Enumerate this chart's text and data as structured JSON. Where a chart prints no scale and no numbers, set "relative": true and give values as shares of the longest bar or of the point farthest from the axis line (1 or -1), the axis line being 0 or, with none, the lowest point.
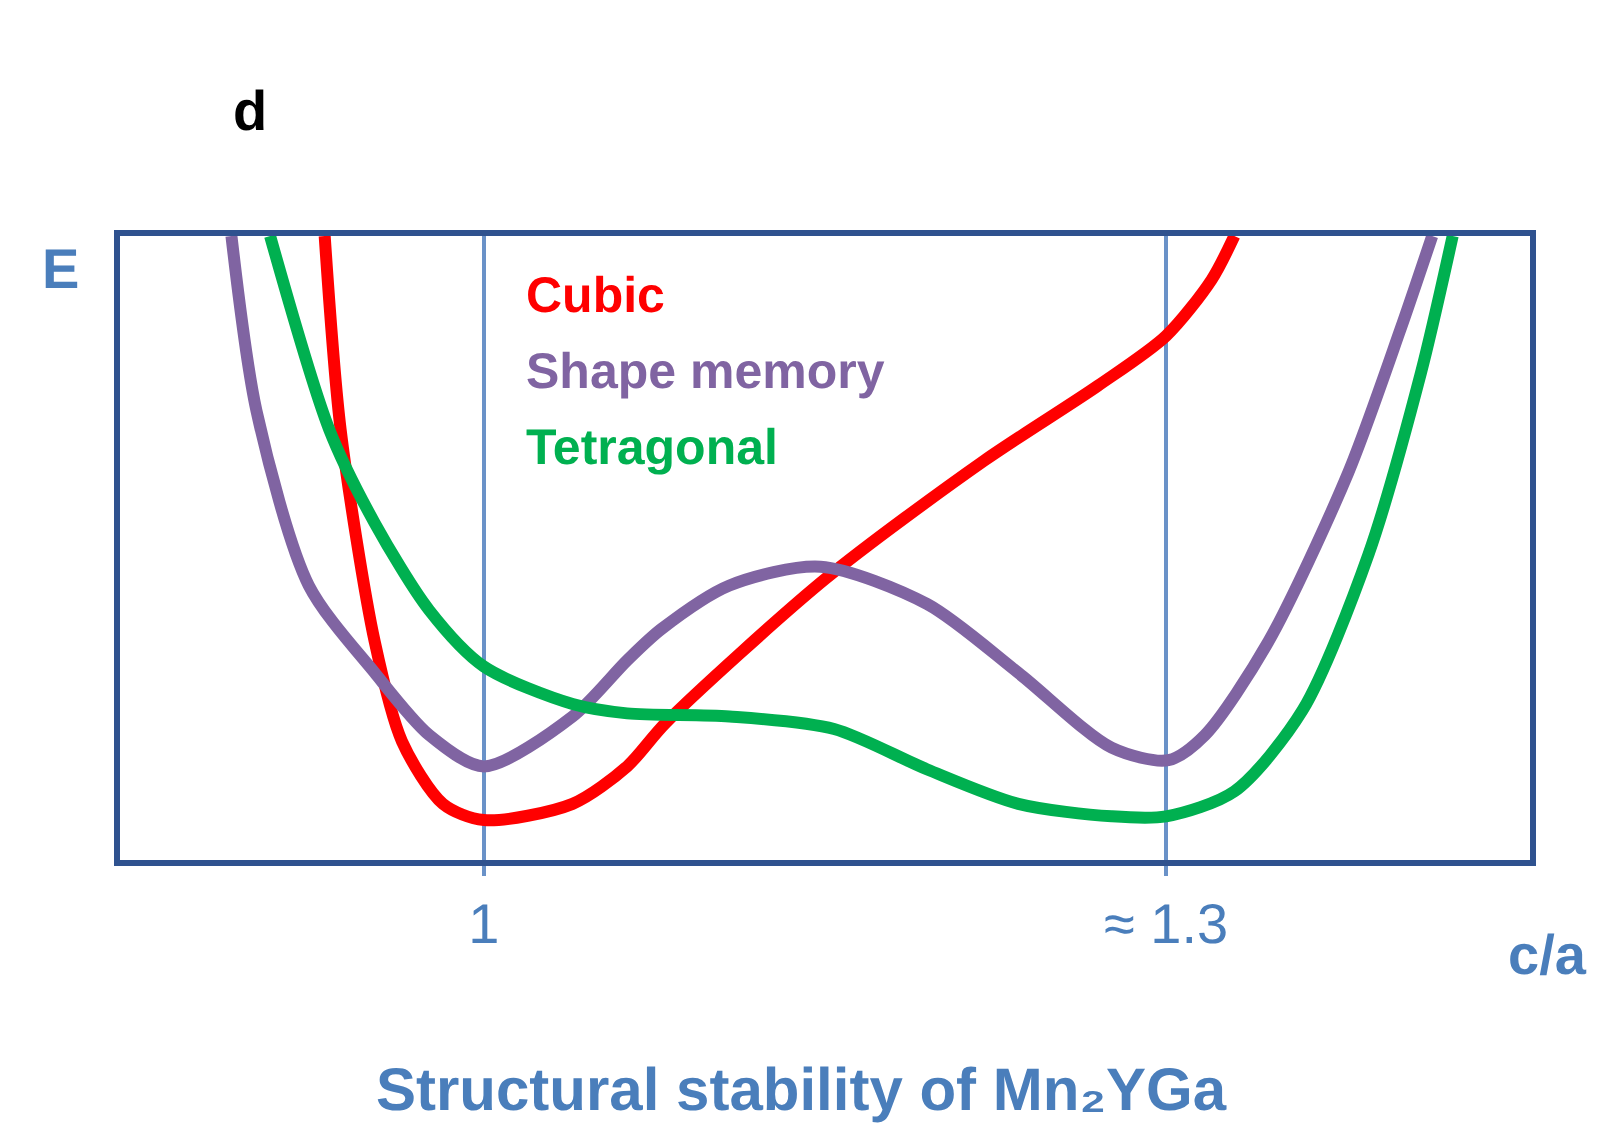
{
  "chart_data": {
    "type": "line",
    "title": "d",
    "xlabel": "c/a",
    "ylabel": "E",
    "annotations": [
      "Structural stability of Mn₂YGa"
    ],
    "relative": true,
    "xlim": [
      0.84,
      1.46
    ],
    "xticks": [
      1,
      {
        "value": 1.3,
        "label": "≈ 1.3"
      }
    ],
    "grid": "x",
    "legend": "top left",
    "line_style": "solid",
    "series": [
      {
        "name": "Cubic",
        "color": "#ff0000",
        "x": [
          0.93,
          0.937,
          0.952,
          0.964,
          0.982,
          1.0,
          1.039,
          1.063,
          1.08,
          1.15,
          1.22,
          1.27,
          1.3,
          1.32,
          1.33
        ],
        "values": [
          1.0,
          0.69,
          0.35,
          0.19,
          0.09,
          0.064,
          0.09,
          0.15,
          0.22,
          0.45,
          0.64,
          0.76,
          0.84,
          0.93,
          1.0
        ]
      },
      {
        "name": "Shape memory",
        "color": "#8064a2",
        "x": [
          0.889,
          0.9,
          0.923,
          0.952,
          0.976,
          1.0,
          1.039,
          1.063,
          1.078,
          1.108,
          1.148,
          1.195,
          1.235,
          1.276,
          1.301,
          1.317,
          1.345,
          1.38,
          1.403,
          1.417
        ],
        "values": [
          1.0,
          0.72,
          0.44,
          0.3,
          0.2,
          0.15,
          0.23,
          0.32,
          0.37,
          0.44,
          0.47,
          0.41,
          0.3,
          0.18,
          0.16,
          0.2,
          0.35,
          0.62,
          0.85,
          1.0
        ]
      },
      {
        "name": "Tetragonal",
        "color": "#00b050",
        "x": [
          0.906,
          0.932,
          0.952,
          0.976,
          1.0,
          1.039,
          1.063,
          1.108,
          1.154,
          1.195,
          1.235,
          1.276,
          1.3,
          1.33,
          1.36,
          1.389,
          1.412,
          1.426
        ],
        "values": [
          1.0,
          0.69,
          0.54,
          0.4,
          0.31,
          0.25,
          0.235,
          0.23,
          0.21,
          0.145,
          0.09,
          0.07,
          0.07,
          0.11,
          0.24,
          0.49,
          0.78,
          1.0
        ]
      }
    ]
  }
}
